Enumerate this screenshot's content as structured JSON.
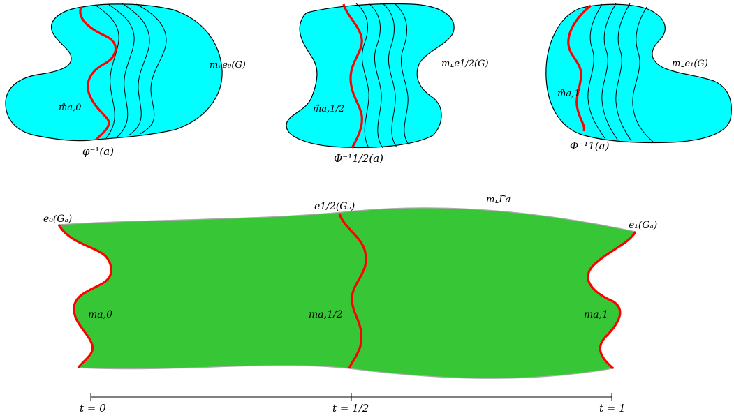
{
  "colors": {
    "fiber_fill": "#00ffff",
    "graph_fill": "#36c636",
    "highlight_curve": "#ff0000",
    "outline": "#000000",
    "top_edge": "#aaaaaa"
  },
  "top_panels": [
    {
      "measure_label": "m⌞e₀(G)",
      "curve_label": "m̂a,0",
      "base_label": "φ⁻¹(a)"
    },
    {
      "measure_label": "m⌞e1/2(G)",
      "curve_label": "m̂a,1/2",
      "base_label": "Φ⁻¹1/2(a)"
    },
    {
      "measure_label": "m⌞e₁(G)",
      "curve_label": "m̂a,1",
      "base_label": "Φ⁻¹1(a)"
    }
  ],
  "bottom": {
    "top_label": "m⌞Γ̄a",
    "endpoint_labels": [
      "e₀(Gₐ)",
      "e1/2(Gₐ)",
      "e₁(Gₐ)"
    ],
    "slice_labels": [
      "ma,0",
      "ma,1/2",
      "ma,1"
    ]
  },
  "time_axis": {
    "ticks": [
      "t = 0",
      "t = 1/2",
      "t = 1"
    ]
  }
}
